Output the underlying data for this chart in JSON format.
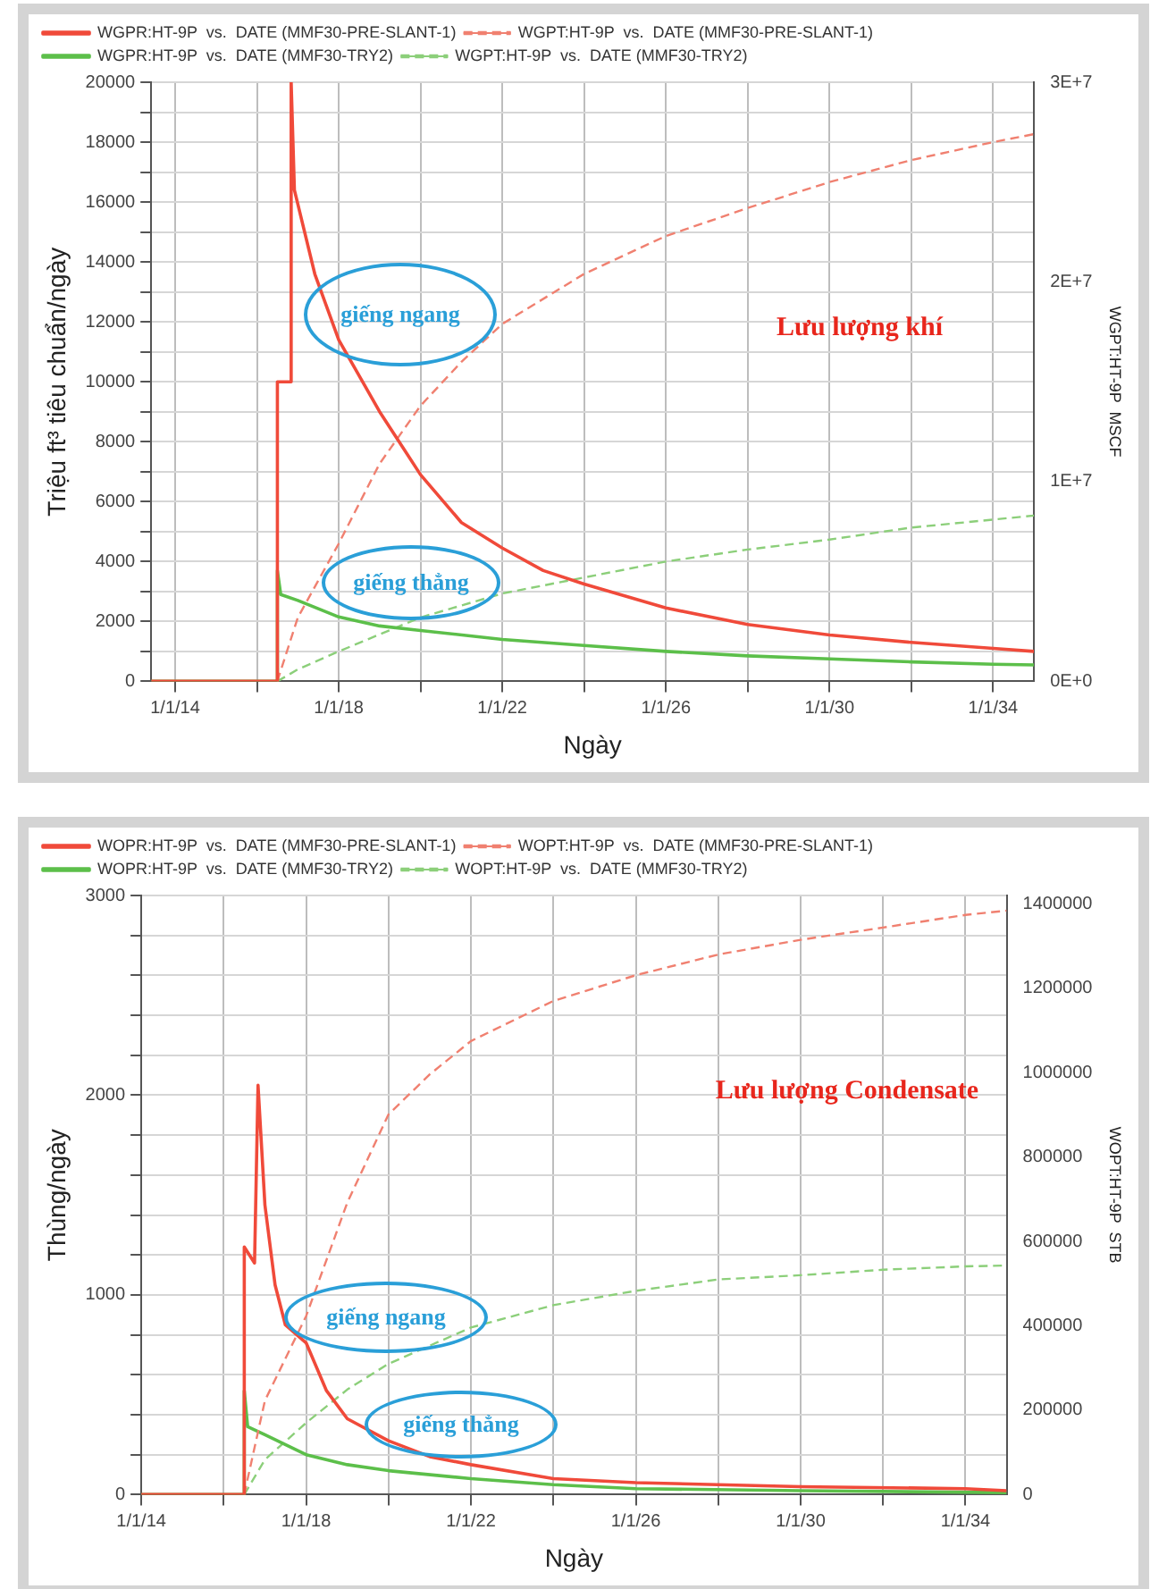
{
  "chart_data": [
    {
      "type": "line",
      "xlabel": "Ngày",
      "ylabel": "Triệu ft³ tiêu chuẩn/ngày",
      "y2label": "WGPT:HT-9P  MSCF",
      "annotations": [
        "giếng ngang",
        "giếng thẳng",
        "Lưu lượng khí"
      ],
      "xlim": [
        "2013-06",
        "2035-01"
      ],
      "xticks": [
        {
          "value": "2014-01-01",
          "label": "1/1/14"
        },
        {
          "value": "2016-01-01",
          "label": null
        },
        {
          "value": "2018-01-01",
          "label": "1/1/18"
        },
        {
          "value": "2020-01-01",
          "label": null
        },
        {
          "value": "2022-01-01",
          "label": "1/1/22"
        },
        {
          "value": "2024-01-01",
          "label": null
        },
        {
          "value": "2026-01-01",
          "label": "1/1/26"
        },
        {
          "value": "2028-01-01",
          "label": null
        },
        {
          "value": "2030-01-01",
          "label": "1/1/30"
        },
        {
          "value": "2032-01-01",
          "label": null
        },
        {
          "value": "2034-01-01",
          "label": "1/1/34"
        }
      ],
      "ylim": [
        0,
        20000
      ],
      "yticks": [
        0,
        {
          "value": 1000,
          "label": null
        },
        2000,
        {
          "value": 3000,
          "label": null
        },
        4000,
        {
          "value": 5000,
          "label": null
        },
        6000,
        {
          "value": 7000,
          "label": null
        },
        8000,
        {
          "value": 9000,
          "label": null
        },
        10000,
        {
          "value": 11000,
          "label": null
        },
        12000,
        {
          "value": 13000,
          "label": null
        },
        14000,
        {
          "value": 15000,
          "label": null
        },
        16000,
        {
          "value": 17000,
          "label": null
        },
        18000,
        {
          "value": 19000,
          "label": null
        },
        20000
      ],
      "y2lim": [
        0,
        30000000
      ],
      "y2ticks": [
        {
          "value": 0,
          "label": "0E+0"
        },
        {
          "value": 10000000,
          "label": "1E+7"
        },
        {
          "value": 20000000,
          "label": "2E+7"
        },
        {
          "value": 30000000,
          "label": "3E+7"
        }
      ],
      "grid": true,
      "legend": "top",
      "marker": "none",
      "series": [
        {
          "name": "WGPR:HT-9P  vs.  DATE (MMF30-PRE-SLANT-1)",
          "color": "#f04a3a",
          "line_style": "solid",
          "x": [
            "2013-06",
            "2016-07",
            "2016-07-02",
            "2016-11",
            "2016-11-02",
            "2016-12",
            "2017-06",
            "2018-01",
            "2019-01",
            "2020-01",
            "2021-01",
            "2022-01",
            "2023-01",
            "2024-01",
            "2026-01",
            "2028-01",
            "2030-01",
            "2032-01",
            "2034-01",
            "2035-01"
          ],
          "values": [
            0,
            0,
            10000,
            10000,
            20000,
            16400,
            13600,
            11400,
            9000,
            6900,
            5300,
            4450,
            3700,
            3250,
            2450,
            1900,
            1550,
            1300,
            1100,
            1000
          ]
        },
        {
          "name": "WGPT:HT-9P  vs.  DATE (MMF30-PRE-SLANT-1)",
          "color": "#f08070",
          "line_style": "dashed",
          "axis": "y2",
          "x": [
            "2016-07",
            "2017-01",
            "2018-01",
            "2019-01",
            "2020-01",
            "2021-01",
            "2022-01",
            "2024-01",
            "2026-01",
            "2028-01",
            "2030-01",
            "2032-01",
            "2034-01",
            "2035-01"
          ],
          "values": [
            0,
            3200000,
            6900000,
            10900000,
            13800000,
            16000000,
            17900000,
            20400000,
            22300000,
            23700000,
            25000000,
            26100000,
            27000000,
            27400000
          ]
        },
        {
          "name": "WGPR:HT-9P  vs.  DATE (MMF30-TRY2)",
          "color": "#5cbf4a",
          "line_style": "solid",
          "x": [
            "2013-06",
            "2016-07",
            "2016-07-02",
            "2016-08",
            "2017-01",
            "2018-01",
            "2019-01",
            "2020-01",
            "2022-01",
            "2024-01",
            "2026-01",
            "2028-01",
            "2030-01",
            "2032-01",
            "2034-01",
            "2035-01"
          ],
          "values": [
            0,
            0,
            3700,
            2900,
            2700,
            2150,
            1850,
            1700,
            1400,
            1200,
            1000,
            850,
            750,
            650,
            570,
            550
          ]
        },
        {
          "name": "WGPT:HT-9P  vs.  DATE (MMF30-TRY2)",
          "color": "#8ccf7a",
          "line_style": "dashed",
          "axis": "y2",
          "x": [
            "2016-07",
            "2017-01",
            "2018-01",
            "2020-01",
            "2022-01",
            "2024-01",
            "2026-01",
            "2028-01",
            "2030-01",
            "2032-01",
            "2034-01",
            "2035-01"
          ],
          "values": [
            0,
            600000,
            1500000,
            3200000,
            4400000,
            5200000,
            6000000,
            6600000,
            7100000,
            7700000,
            8100000,
            8300000
          ]
        }
      ]
    },
    {
      "type": "line",
      "xlabel": "Ngày",
      "ylabel": "Thùng/ngày",
      "y2label": "WOPT:HT-9P  STB",
      "annotations": [
        "giếng ngang",
        "giếng thẳng",
        "Lưu lượng Condensate"
      ],
      "xlim": [
        "2014-01",
        "2035-01"
      ],
      "xticks": [
        {
          "value": "2014-01-01",
          "label": "1/1/14"
        },
        {
          "value": "2016-01-01",
          "label": null
        },
        {
          "value": "2018-01-01",
          "label": "1/1/18"
        },
        {
          "value": "2020-01-01",
          "label": null
        },
        {
          "value": "2022-01-01",
          "label": "1/1/22"
        },
        {
          "value": "2024-01-01",
          "label": null
        },
        {
          "value": "2026-01-01",
          "label": "1/1/26"
        },
        {
          "value": "2028-01-01",
          "label": null
        },
        {
          "value": "2030-01-01",
          "label": "1/1/30"
        },
        {
          "value": "2032-01-01",
          "label": null
        },
        {
          "value": "2034-01-01",
          "label": "1/1/34"
        }
      ],
      "ylim": [
        0,
        3000
      ],
      "yticks": [
        0,
        {
          "value": 200,
          "label": null
        },
        {
          "value": 400,
          "label": null
        },
        {
          "value": 600,
          "label": null
        },
        {
          "value": 800,
          "label": null
        },
        1000,
        {
          "value": 1200,
          "label": null
        },
        {
          "value": 1400,
          "label": null
        },
        {
          "value": 1600,
          "label": null
        },
        {
          "value": 1800,
          "label": null
        },
        2000,
        {
          "value": 2200,
          "label": null
        },
        {
          "value": 2400,
          "label": null
        },
        {
          "value": 2600,
          "label": null
        },
        {
          "value": 2800,
          "label": null
        },
        3000
      ],
      "y2lim": [
        0,
        1420000
      ],
      "y2ticks": [
        0,
        200000,
        400000,
        600000,
        800000,
        1000000,
        1200000,
        1400000
      ],
      "grid": true,
      "legend": "top",
      "marker": "none",
      "series": [
        {
          "name": "WOPR:HT-9P  vs.  DATE (MMF30-PRE-SLANT-1)",
          "color": "#f04a3a",
          "line_style": "solid",
          "x": [
            "2014-01",
            "2016-07",
            "2016-07-02",
            "2016-10",
            "2016-11",
            "2017-01",
            "2017-04",
            "2017-07",
            "2018-01",
            "2018-07",
            "2019-01",
            "2020-01",
            "2021-01",
            "2022-01",
            "2024-01",
            "2026-01",
            "2030-01",
            "2034-01",
            "2035-01"
          ],
          "values": [
            0,
            0,
            1240,
            1160,
            2050,
            1450,
            1050,
            850,
            760,
            520,
            380,
            270,
            190,
            150,
            80,
            60,
            40,
            30,
            20
          ]
        },
        {
          "name": "WOPT:HT-9P  vs.  DATE (MMF30-PRE-SLANT-1)",
          "color": "#f08070",
          "line_style": "dashed",
          "axis": "y2",
          "x": [
            "2016-07",
            "2017-01",
            "2018-01",
            "2019-01",
            "2020-01",
            "2021-01",
            "2022-01",
            "2024-01",
            "2026-01",
            "2028-01",
            "2030-01",
            "2032-01",
            "2034-01",
            "2035-01"
          ],
          "values": [
            0,
            223000,
            423000,
            692000,
            901000,
            996000,
            1075000,
            1170000,
            1231000,
            1280000,
            1315000,
            1344000,
            1374000,
            1384000
          ]
        },
        {
          "name": "WOPR:HT-9P  vs.  DATE (MMF30-TRY2)",
          "color": "#5cbf4a",
          "line_style": "solid",
          "x": [
            "2014-01",
            "2016-07",
            "2016-07-02",
            "2016-08",
            "2017-01",
            "2018-01",
            "2019-01",
            "2020-01",
            "2022-01",
            "2024-01",
            "2026-01",
            "2030-01",
            "2035-01"
          ],
          "values": [
            0,
            0,
            520,
            340,
            300,
            200,
            150,
            120,
            80,
            50,
            30,
            20,
            10
          ]
        },
        {
          "name": "WOPT:HT-9P  vs.  DATE (MMF30-TRY2)",
          "color": "#8ccf7a",
          "line_style": "dashed",
          "axis": "y2",
          "x": [
            "2016-07",
            "2017-01",
            "2018-01",
            "2019-01",
            "2020-01",
            "2022-01",
            "2024-01",
            "2026-01",
            "2028-01",
            "2030-01",
            "2032-01",
            "2034-01",
            "2035-01"
          ],
          "values": [
            0,
            83000,
            170000,
            249000,
            310000,
            396000,
            449000,
            483000,
            510000,
            520000,
            533000,
            541000,
            543000
          ]
        }
      ]
    }
  ]
}
